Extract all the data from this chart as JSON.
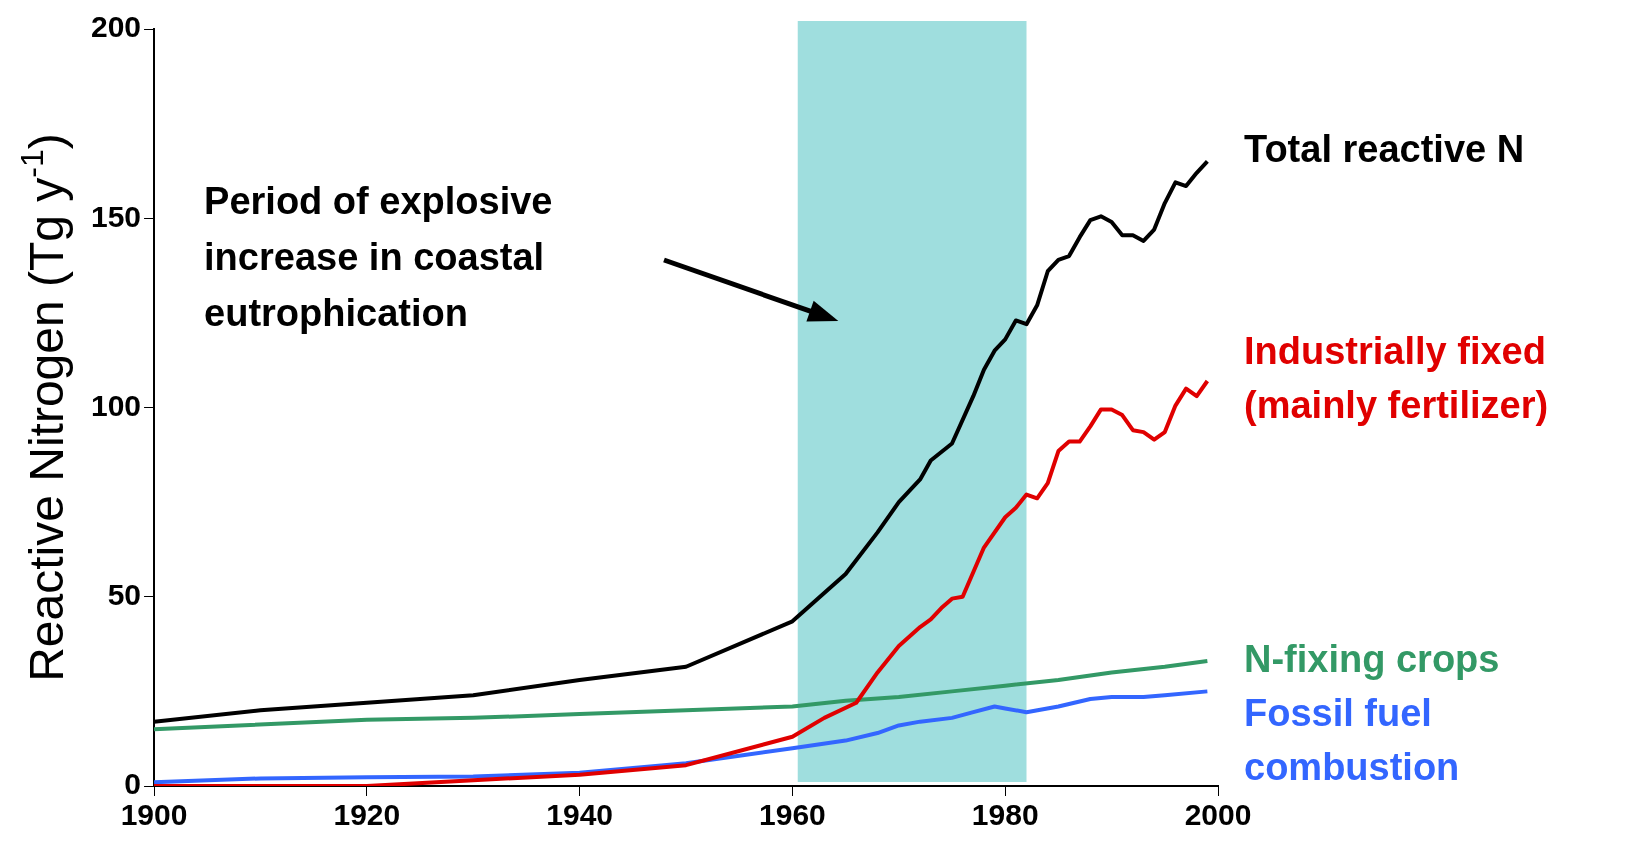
{
  "chart_data": {
    "type": "line",
    "ylabel": "Reactive Nitrogen (Tg y$^{-1}$)",
    "xlim": [
      1900,
      2000
    ],
    "xticks": [
      1900,
      1920,
      1940,
      1960,
      1980,
      2000
    ],
    "ylim": [
      0,
      200
    ],
    "yticks": [
      0,
      50,
      100,
      150,
      200
    ],
    "grid": false,
    "legend": false,
    "marker": "none",
    "line_style": "solid",
    "annotations": [
      "Period of explosive increase in coastal eutrophication"
    ],
    "bands": [
      {
        "axis": "x",
        "from": 1960.5,
        "to": 1982,
        "color": "#7fd3d3"
      }
    ],
    "series": [
      {
        "name": "Total reactive N",
        "color": "#000000",
        "x": [
          1900,
          1910,
          1920,
          1930,
          1940,
          1950,
          1960,
          1965,
          1968,
          1970,
          1972,
          1973,
          1975,
          1977,
          1978,
          1979,
          1980,
          1981,
          1982,
          1983,
          1984,
          1985,
          1986,
          1987,
          1988,
          1989,
          1990,
          1991,
          1992,
          1993,
          1994,
          1995,
          1996,
          1997,
          1998,
          1999
        ],
        "values": [
          17,
          20,
          22,
          24,
          28,
          31.5,
          43.5,
          56,
          67,
          75,
          81,
          86,
          90.5,
          103,
          110,
          115,
          118,
          123,
          122,
          127,
          136,
          139,
          140,
          145,
          149.5,
          150.5,
          149,
          145.5,
          145.5,
          144,
          147,
          154,
          159.5,
          158.5,
          162,
          165
        ]
      },
      {
        "name": "Industrially fixed (mainly fertilizer)",
        "color": "#e00000",
        "x": [
          1900,
          1920,
          1930,
          1940,
          1950,
          1960,
          1963,
          1966,
          1968,
          1970,
          1972,
          1973,
          1974,
          1975,
          1976,
          1978,
          1980,
          1981,
          1982,
          1983,
          1984,
          1985,
          1986,
          1987,
          1988,
          1989,
          1990,
          1991,
          1992,
          1993,
          1994,
          1995,
          1996,
          1997,
          1998,
          1999
        ],
        "values": [
          0,
          0,
          1.5,
          3,
          5.5,
          13,
          18,
          22,
          30,
          37,
          42,
          44,
          47,
          49.5,
          50,
          63,
          71,
          73.5,
          77,
          76,
          80,
          88.5,
          91,
          91,
          95,
          99.5,
          99.5,
          98,
          94,
          93.5,
          91.5,
          93.5,
          100.5,
          105,
          103,
          107
        ]
      },
      {
        "name": "N-fixing crops",
        "color": "#339966",
        "x": [
          1900,
          1920,
          1930,
          1940,
          1950,
          1960,
          1965,
          1970,
          1975,
          1980,
          1985,
          1990,
          1995,
          1999
        ],
        "values": [
          15,
          17.5,
          18,
          19,
          20,
          21,
          22.5,
          23.5,
          25,
          26.5,
          28,
          30,
          31.5,
          33
        ]
      },
      {
        "name": "Fossil fuel combustion",
        "color": "#3366ff",
        "x": [
          1900,
          1910,
          1920,
          1930,
          1940,
          1950,
          1955,
          1960,
          1965,
          1968,
          1970,
          1972,
          1975,
          1977,
          1979,
          1980,
          1982,
          1985,
          1988,
          1990,
          1993,
          1995,
          1999
        ],
        "values": [
          1,
          2,
          2.3,
          2.5,
          3.5,
          6,
          8,
          10,
          12,
          14,
          16,
          17,
          18,
          19.5,
          21,
          20.5,
          19.5,
          21,
          23,
          23.5,
          23.5,
          24,
          25
        ]
      }
    ]
  }
}
